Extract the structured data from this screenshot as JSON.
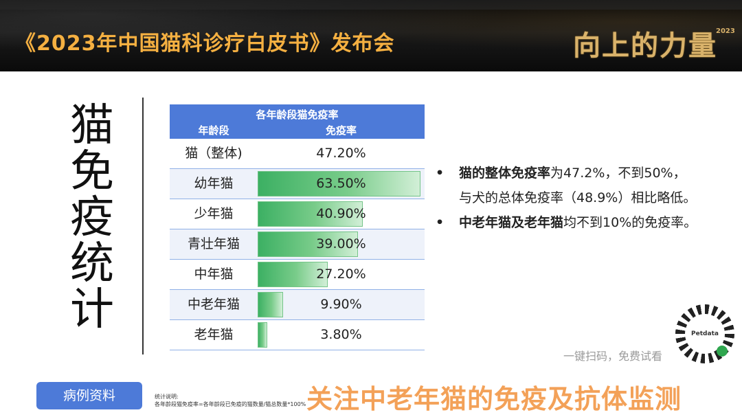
{
  "header": {
    "title": "《2023年中国猫科诊疗白皮书》发布会",
    "slogan": "向上的力量",
    "slogan_year": "2023"
  },
  "side_title": "猫免疫统计",
  "table": {
    "caption": "各年龄段猫免疫率",
    "col_age": "年龄段",
    "col_rate": "免疫率",
    "rows": [
      {
        "age": "猫（整体)",
        "value": "47.20%",
        "rate": null
      },
      {
        "age": "幼年猫",
        "value": "63.50%",
        "rate": 63.5
      },
      {
        "age": "少年猫",
        "value": "40.90%",
        "rate": 40.9
      },
      {
        "age": "青壮年猫",
        "value": "39.00%",
        "rate": 39.0
      },
      {
        "age": "中年猫",
        "value": "27.20%",
        "rate": 27.2
      },
      {
        "age": "中老年猫",
        "value": "9.90%",
        "rate": 9.9
      },
      {
        "age": "老年猫",
        "value": "3.80%",
        "rate": 3.8
      }
    ]
  },
  "bullets": {
    "b1_bold": "猫的整体免疫率",
    "b1_rest": "为47.2%，不到50%，",
    "b1_line2": "与犬的总体免疫率（48.9%）相比略低。",
    "b2_bold": "中老年猫及老年猫",
    "b2_rest": "均不到10%的免疫率。"
  },
  "qr": {
    "brand": "Petdata",
    "scan_text": "一键扫码，免费试看"
  },
  "footer": {
    "button": "病例资料",
    "notes_title": "统计说明:",
    "notes_body": "各年龄段猫免疫率=各年龄段已免疫的猫数量/猫总数量*100%",
    "headline": "关注中老年猫的免疫及抗体监测"
  }
}
